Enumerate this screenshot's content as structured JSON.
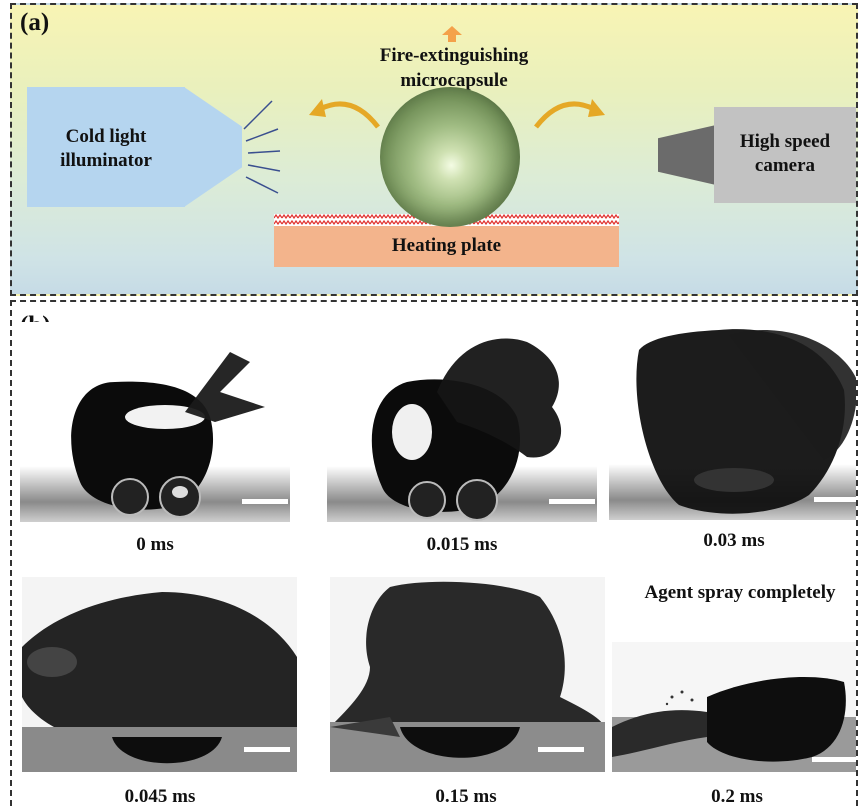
{
  "panel_a": {
    "label": "(a)",
    "illuminator_label": "Cold light illuminator",
    "capsule_label": "Fire-extinguishing microcapsule",
    "plate_label": "Heating plate",
    "camera_label": "High speed camera",
    "colors": {
      "illuminator": "#b5d5ef",
      "heating_plate": "#f3b48c",
      "camera": "#c2c2c2",
      "arrows": "#e5a826",
      "up_arrow": "#f4a14a"
    }
  },
  "panel_b": {
    "label": "(b)",
    "agent_note": "Agent spray completely",
    "frames": [
      {
        "time": "0 ms"
      },
      {
        "time": "0.015 ms"
      },
      {
        "time": "0.03 ms"
      },
      {
        "time": "0.045 ms"
      },
      {
        "time": "0.15 ms"
      },
      {
        "time": "0.2 ms"
      }
    ]
  }
}
